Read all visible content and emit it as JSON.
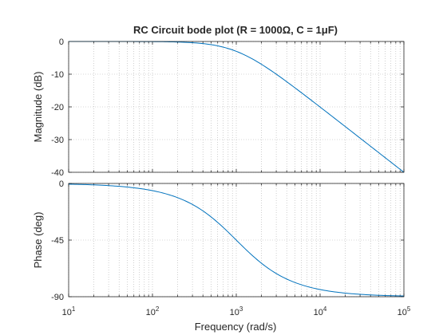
{
  "chart_data": {
    "type": "line",
    "title": "RC Circuit bode plot (R = 1000Ω, C = 1μF)",
    "xlabel": "Frequency  (rad/s)",
    "xscale": "log",
    "xlim": [
      10,
      100000
    ],
    "x_ticks": [
      {
        "base": "10",
        "exp": "1"
      },
      {
        "base": "10",
        "exp": "2"
      },
      {
        "base": "10",
        "exp": "3"
      },
      {
        "base": "10",
        "exp": "4"
      },
      {
        "base": "10",
        "exp": "5"
      }
    ],
    "grid": true,
    "line_color": "#0072bd",
    "magnitude": {
      "ylabel": "Magnitude (dB)",
      "ylim": [
        -40,
        0
      ],
      "yticks": [
        0,
        -10,
        -20,
        -30,
        -40
      ],
      "ytick_labels": [
        "0",
        "-10",
        "-20",
        "-30",
        "-40"
      ],
      "series": {
        "x": [
          10,
          31.6,
          100,
          316,
          1000,
          3162,
          10000,
          31623,
          100000
        ],
        "y": [
          0,
          -0.004,
          -0.04,
          -0.41,
          -3.01,
          -10.41,
          -20.04,
          -30.0,
          -40.0
        ]
      }
    },
    "phase": {
      "ylabel": "Phase (deg)",
      "ylim": [
        -90,
        0
      ],
      "yticks": [
        0,
        -45,
        -90
      ],
      "ytick_labels": [
        "0",
        "-45",
        "-90"
      ],
      "series": {
        "x": [
          10,
          31.6,
          100,
          316,
          1000,
          3162,
          10000,
          31623,
          100000
        ],
        "y": [
          -0.6,
          -1.8,
          -5.7,
          -17.5,
          -45,
          -72.5,
          -84.3,
          -88.2,
          -89.4
        ]
      }
    }
  }
}
